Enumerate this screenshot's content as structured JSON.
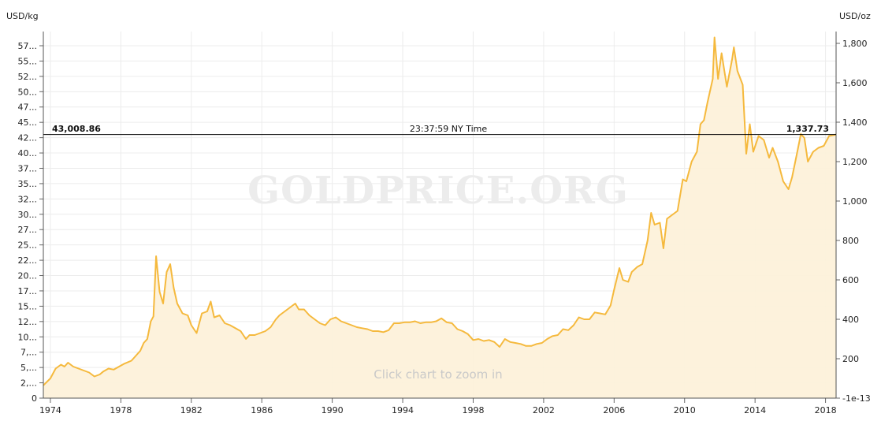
{
  "chart_data": {
    "type": "area",
    "left_axis_unit": "USD/kg",
    "right_axis_unit": "USD/oz",
    "watermark": "GOLDPRICE.ORG",
    "zoom_hint": "Click chart to zoom in",
    "crosshair": {
      "left_value": "43,008.86",
      "time": "23:37:59 NY Time",
      "right_value": "1,337.73",
      "usd_oz": 1337.73
    },
    "left_tick_labels": [
      "0",
      "2,...",
      "5,...",
      "7,...",
      "10...",
      "12...",
      "15...",
      "17...",
      "20...",
      "22...",
      "25...",
      "27...",
      "30...",
      "32...",
      "35...",
      "37...",
      "40...",
      "42...",
      "45...",
      "47...",
      "50...",
      "52...",
      "55...",
      "57..."
    ],
    "right_ticks": [
      {
        "value": 0,
        "label": "-1e-13"
      },
      {
        "value": 200,
        "label": "200"
      },
      {
        "value": 400,
        "label": "400"
      },
      {
        "value": 600,
        "label": "600"
      },
      {
        "value": 800,
        "label": "800"
      },
      {
        "value": 1000,
        "label": "1,000"
      },
      {
        "value": 1200,
        "label": "1,200"
      },
      {
        "value": 1400,
        "label": "1,400"
      },
      {
        "value": 1600,
        "label": "1,600"
      },
      {
        "value": 1800,
        "label": "1,800"
      }
    ],
    "x_ticks": [
      1974,
      1978,
      1982,
      1986,
      1990,
      1994,
      1998,
      2002,
      2006,
      2010,
      2014,
      2018
    ],
    "xlim": [
      1973.6,
      2018.6
    ],
    "ylim_usd_oz": [
      0,
      1800
    ],
    "grid": true,
    "series": [
      {
        "color": "#f5b93d",
        "points": [
          [
            1973.6,
            65
          ],
          [
            1974.0,
            100
          ],
          [
            1974.3,
            150
          ],
          [
            1974.6,
            170
          ],
          [
            1974.8,
            160
          ],
          [
            1975.0,
            180
          ],
          [
            1975.3,
            160
          ],
          [
            1975.6,
            150
          ],
          [
            1975.9,
            140
          ],
          [
            1976.2,
            130
          ],
          [
            1976.5,
            110
          ],
          [
            1976.8,
            120
          ],
          [
            1977.0,
            135
          ],
          [
            1977.3,
            150
          ],
          [
            1977.6,
            145
          ],
          [
            1977.9,
            160
          ],
          [
            1978.2,
            175
          ],
          [
            1978.6,
            190
          ],
          [
            1978.9,
            220
          ],
          [
            1979.1,
            240
          ],
          [
            1979.3,
            280
          ],
          [
            1979.5,
            300
          ],
          [
            1979.7,
            390
          ],
          [
            1979.85,
            415
          ],
          [
            1980.0,
            720
          ],
          [
            1980.2,
            540
          ],
          [
            1980.4,
            480
          ],
          [
            1980.6,
            640
          ],
          [
            1980.8,
            680
          ],
          [
            1981.0,
            560
          ],
          [
            1981.2,
            480
          ],
          [
            1981.5,
            430
          ],
          [
            1981.8,
            420
          ],
          [
            1982.0,
            370
          ],
          [
            1982.3,
            330
          ],
          [
            1982.6,
            430
          ],
          [
            1982.9,
            440
          ],
          [
            1983.1,
            490
          ],
          [
            1983.3,
            410
          ],
          [
            1983.6,
            420
          ],
          [
            1983.9,
            380
          ],
          [
            1984.2,
            370
          ],
          [
            1984.5,
            355
          ],
          [
            1984.8,
            340
          ],
          [
            1985.1,
            300
          ],
          [
            1985.3,
            320
          ],
          [
            1985.6,
            320
          ],
          [
            1985.9,
            330
          ],
          [
            1986.2,
            340
          ],
          [
            1986.5,
            360
          ],
          [
            1986.8,
            400
          ],
          [
            1987.0,
            420
          ],
          [
            1987.3,
            440
          ],
          [
            1987.6,
            460
          ],
          [
            1987.9,
            480
          ],
          [
            1988.1,
            450
          ],
          [
            1988.4,
            450
          ],
          [
            1988.7,
            420
          ],
          [
            1989.0,
            400
          ],
          [
            1989.3,
            380
          ],
          [
            1989.6,
            370
          ],
          [
            1989.9,
            400
          ],
          [
            1990.2,
            410
          ],
          [
            1990.5,
            390
          ],
          [
            1990.8,
            380
          ],
          [
            1991.1,
            370
          ],
          [
            1991.4,
            360
          ],
          [
            1991.7,
            355
          ],
          [
            1992.0,
            350
          ],
          [
            1992.3,
            340
          ],
          [
            1992.6,
            340
          ],
          [
            1992.9,
            335
          ],
          [
            1993.2,
            345
          ],
          [
            1993.5,
            380
          ],
          [
            1993.8,
            380
          ],
          [
            1994.1,
            385
          ],
          [
            1994.4,
            385
          ],
          [
            1994.7,
            390
          ],
          [
            1995.0,
            380
          ],
          [
            1995.3,
            385
          ],
          [
            1995.6,
            385
          ],
          [
            1995.9,
            390
          ],
          [
            1996.2,
            405
          ],
          [
            1996.5,
            385
          ],
          [
            1996.8,
            380
          ],
          [
            1997.1,
            350
          ],
          [
            1997.4,
            340
          ],
          [
            1997.7,
            325
          ],
          [
            1998.0,
            295
          ],
          [
            1998.3,
            300
          ],
          [
            1998.6,
            290
          ],
          [
            1998.9,
            295
          ],
          [
            1999.2,
            285
          ],
          [
            1999.5,
            260
          ],
          [
            1999.8,
            300
          ],
          [
            2000.1,
            285
          ],
          [
            2000.4,
            280
          ],
          [
            2000.7,
            275
          ],
          [
            2001.0,
            265
          ],
          [
            2001.3,
            265
          ],
          [
            2001.6,
            275
          ],
          [
            2001.9,
            280
          ],
          [
            2002.2,
            300
          ],
          [
            2002.5,
            315
          ],
          [
            2002.8,
            320
          ],
          [
            2003.1,
            350
          ],
          [
            2003.4,
            345
          ],
          [
            2003.7,
            370
          ],
          [
            2004.0,
            410
          ],
          [
            2004.3,
            400
          ],
          [
            2004.6,
            400
          ],
          [
            2004.9,
            435
          ],
          [
            2005.2,
            430
          ],
          [
            2005.5,
            425
          ],
          [
            2005.8,
            470
          ],
          [
            2006.0,
            550
          ],
          [
            2006.3,
            660
          ],
          [
            2006.5,
            600
          ],
          [
            2006.8,
            590
          ],
          [
            2007.0,
            640
          ],
          [
            2007.3,
            665
          ],
          [
            2007.6,
            680
          ],
          [
            2007.9,
            800
          ],
          [
            2008.1,
            940
          ],
          [
            2008.3,
            880
          ],
          [
            2008.6,
            890
          ],
          [
            2008.8,
            760
          ],
          [
            2009.0,
            910
          ],
          [
            2009.3,
            930
          ],
          [
            2009.6,
            950
          ],
          [
            2009.9,
            1110
          ],
          [
            2010.1,
            1100
          ],
          [
            2010.4,
            1200
          ],
          [
            2010.7,
            1250
          ],
          [
            2010.9,
            1390
          ],
          [
            2011.1,
            1410
          ],
          [
            2011.3,
            1500
          ],
          [
            2011.6,
            1620
          ],
          [
            2011.7,
            1830
          ],
          [
            2011.9,
            1620
          ],
          [
            2012.1,
            1750
          ],
          [
            2012.4,
            1580
          ],
          [
            2012.7,
            1720
          ],
          [
            2012.8,
            1780
          ],
          [
            2013.0,
            1660
          ],
          [
            2013.3,
            1590
          ],
          [
            2013.5,
            1240
          ],
          [
            2013.7,
            1390
          ],
          [
            2013.9,
            1250
          ],
          [
            2014.2,
            1330
          ],
          [
            2014.5,
            1310
          ],
          [
            2014.8,
            1220
          ],
          [
            2015.0,
            1270
          ],
          [
            2015.3,
            1200
          ],
          [
            2015.6,
            1100
          ],
          [
            2015.9,
            1060
          ],
          [
            2016.1,
            1120
          ],
          [
            2016.4,
            1250
          ],
          [
            2016.6,
            1340
          ],
          [
            2016.8,
            1320
          ],
          [
            2017.0,
            1200
          ],
          [
            2017.3,
            1250
          ],
          [
            2017.6,
            1270
          ],
          [
            2017.9,
            1280
          ],
          [
            2018.2,
            1330
          ],
          [
            2018.6,
            1337.73
          ]
        ]
      }
    ]
  }
}
